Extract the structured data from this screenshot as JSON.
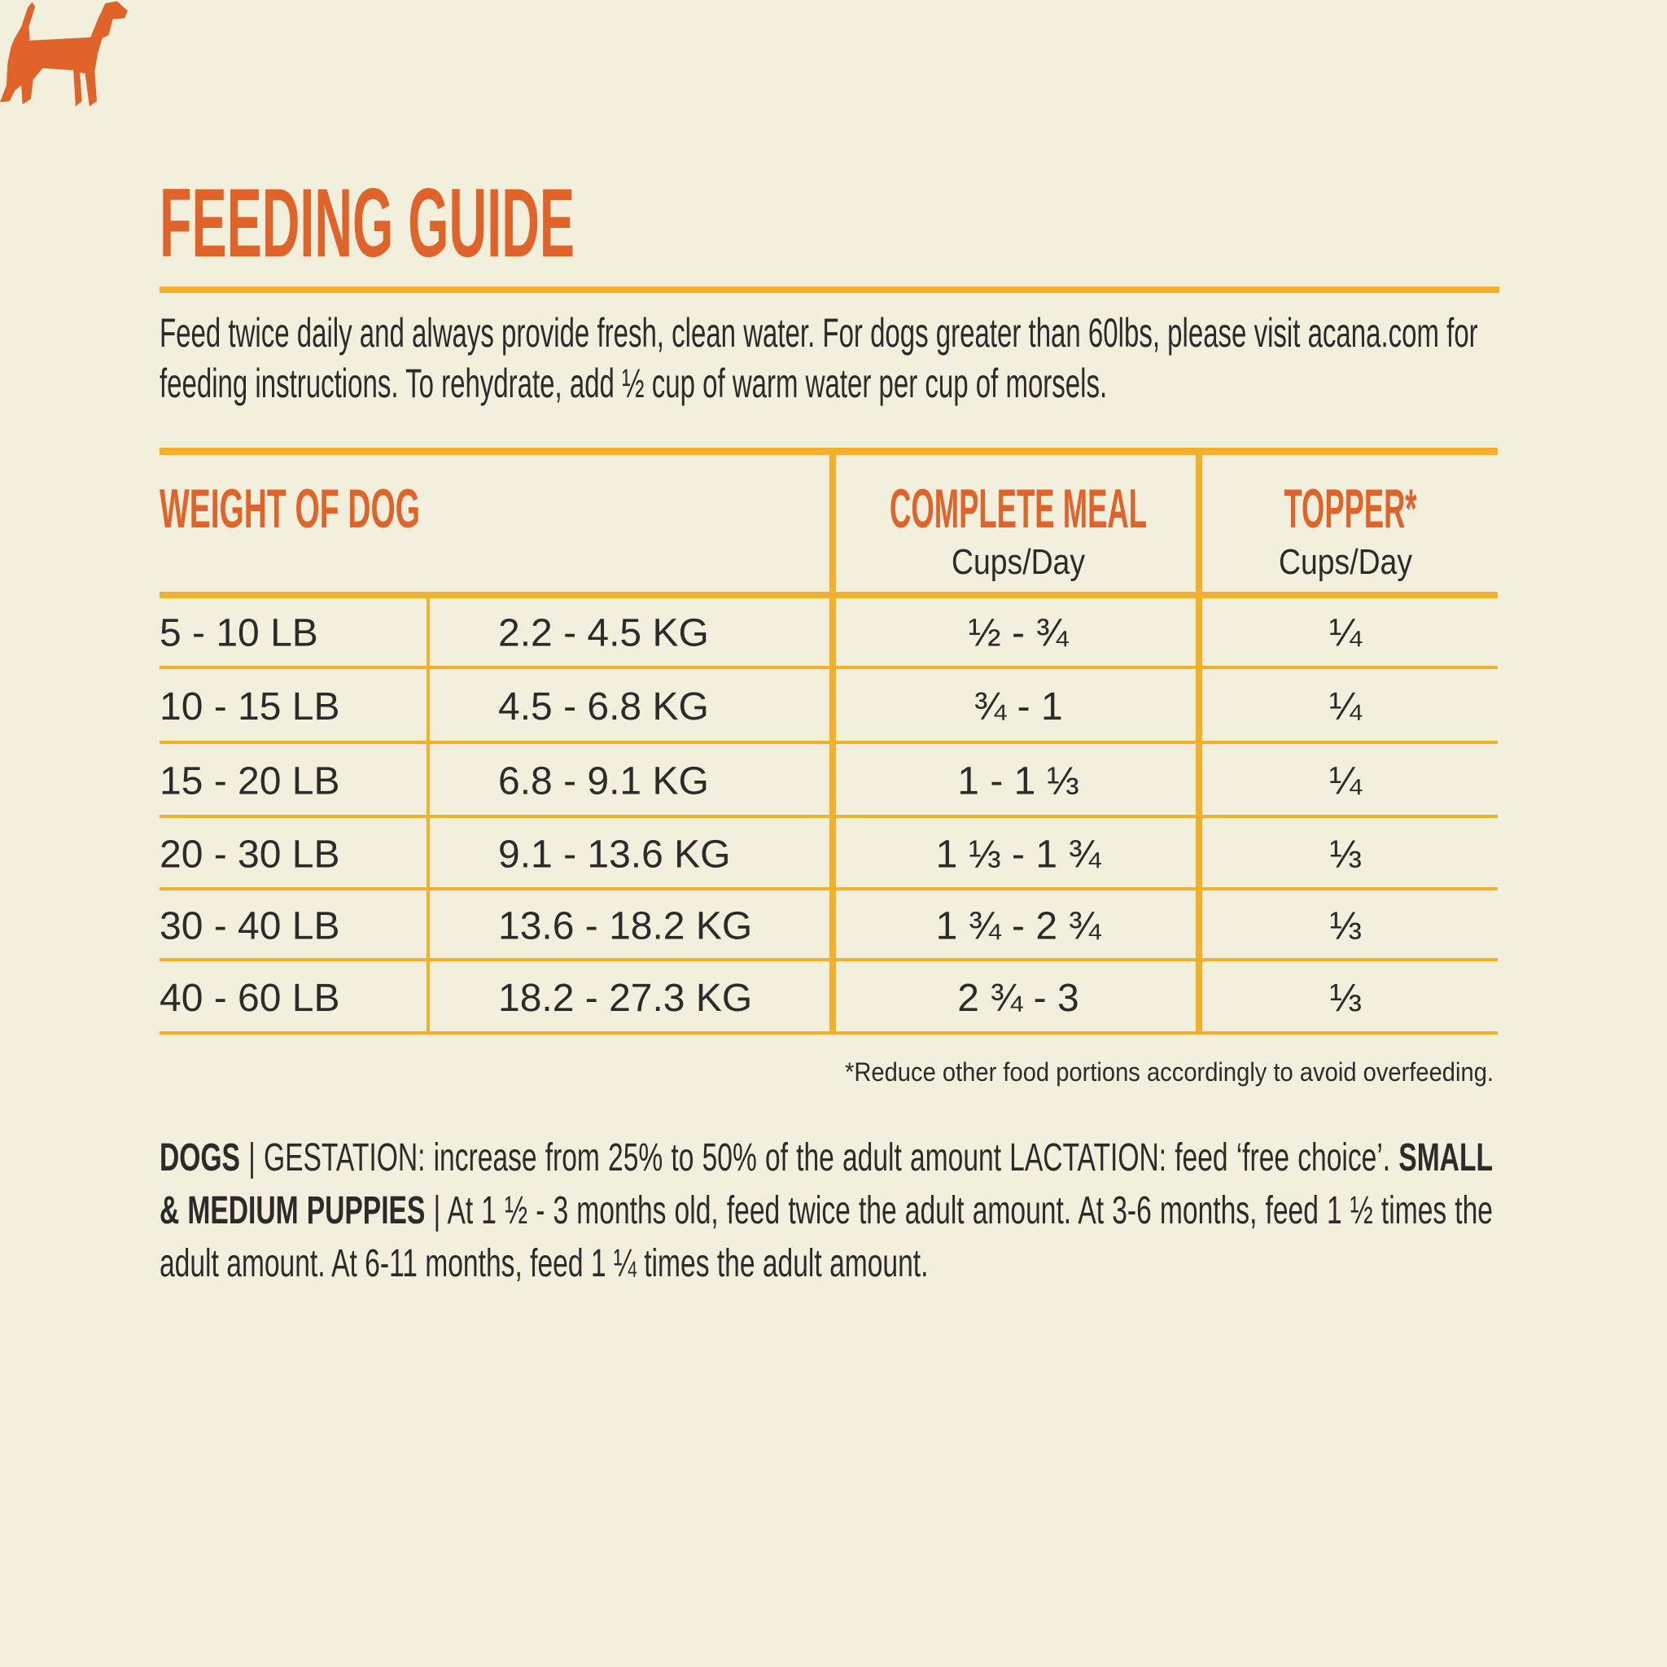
{
  "title": "FEEDING GUIDE",
  "intro": "Feed twice daily and always provide fresh, clean water. For dogs greater than 60lbs, please visit acana.com for feeding instructions. To rehydrate, add ½ cup of warm water per cup of morsels.",
  "table": {
    "header": {
      "weight": "WEIGHT OF DOG",
      "meal": {
        "title": "COMPLETE MEAL",
        "unit": "Cups/Day"
      },
      "topper": {
        "title": "TOPPER*",
        "unit": "Cups/Day"
      }
    },
    "rows": [
      [
        "5 - 10 LB",
        "2.2 - 4.5 KG",
        "½ - ¾",
        "¼"
      ],
      [
        "10 - 15 LB",
        "4.5 - 6.8 KG",
        "¾ - 1",
        "¼"
      ],
      [
        "15 - 20 LB",
        "6.8 - 9.1 KG",
        "1 - 1 ⅓",
        "¼"
      ],
      [
        "20 - 30 LB",
        "9.1 - 13.6 KG",
        "1 ⅓ - 1 ¾",
        "⅓"
      ],
      [
        "30 - 40 LB",
        "13.6 - 18.2 KG",
        "1 ¾ - 2 ¾",
        "⅓"
      ],
      [
        "40 - 60 LB",
        "18.2 - 27.3 KG",
        "2 ¾ - 3",
        "⅓"
      ]
    ]
  },
  "footnote": "*Reduce other food portions accordingly to avoid overfeeding.",
  "notes": [
    {
      "text": "DOGS",
      "bold": true
    },
    {
      "text": " | GESTATION: increase from 25% to 50% of the adult amount LACTATION: feed ‘free choice’. ",
      "bold": false
    },
    {
      "text": "SMALL & MEDIUM PUPPIES",
      "bold": true
    },
    {
      "text": " | At 1 ½ - 3 months old, feed twice the adult amount. At 3-6 months, feed 1 ½ times the adult amount. At 6-11 months, feed 1 ¼ times the adult amount.",
      "bold": false
    }
  ]
}
